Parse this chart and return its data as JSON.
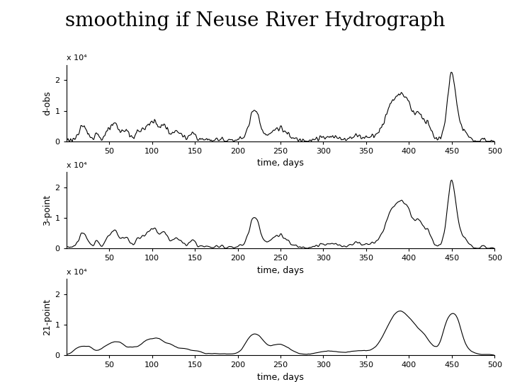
{
  "title": "smoothing if Neuse River Hydrograph",
  "title_fontsize": 20,
  "xlabel": "time, days",
  "ylabels": [
    "d-obs",
    "3-point",
    "21-point"
  ],
  "xlim": [
    0,
    500
  ],
  "ylim": [
    0,
    25000
  ],
  "yticks": [
    0,
    10000,
    20000
  ],
  "ytick_labels": [
    "0",
    "1",
    "2"
  ],
  "xticks": [
    50,
    100,
    150,
    200,
    250,
    300,
    350,
    400,
    450,
    500
  ],
  "scale_label": "x 10⁴",
  "background_color": "#ffffff",
  "line_color": "#000000",
  "line_width": 0.8,
  "figsize": [
    7.2,
    5.4
  ],
  "dpi": 100
}
